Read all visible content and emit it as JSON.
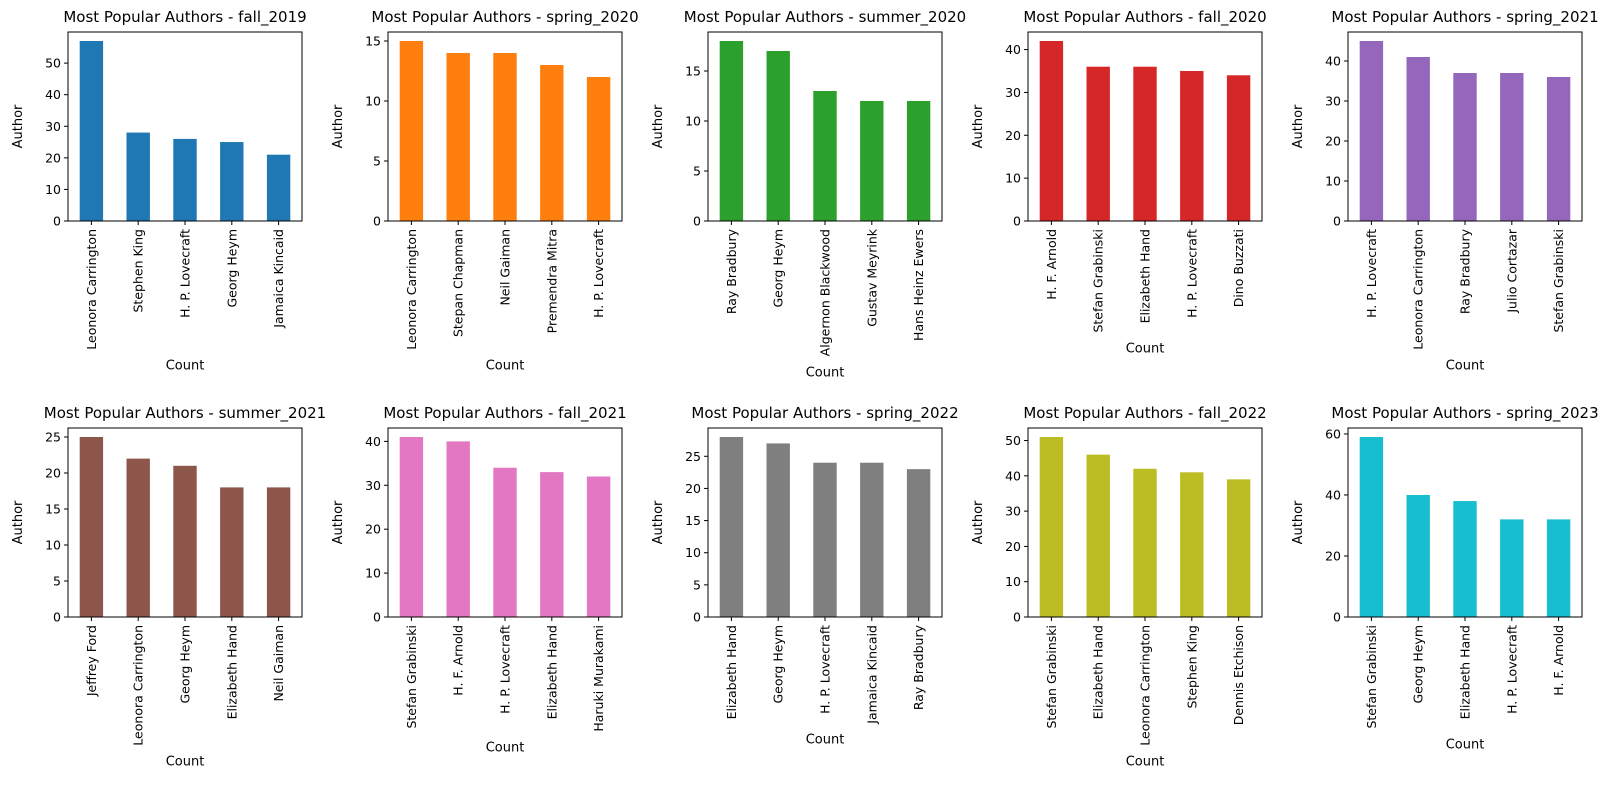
{
  "chart_data": [
    {
      "type": "bar",
      "title": "Most Popular Authors - fall_2019",
      "xlabel": "Count",
      "ylabel": "Author",
      "color": "#1f77b4",
      "categories": [
        "Leonora Carrington",
        "Stephen King",
        "H. P. Lovecraft",
        "Georg Heym",
        "Jamaica Kincaid"
      ],
      "values": [
        57,
        28,
        26,
        25,
        21
      ],
      "ylim": [
        0,
        59.85
      ],
      "yticks": [
        0,
        10,
        20,
        30,
        40,
        50
      ],
      "grid": false
    },
    {
      "type": "bar",
      "title": "Most Popular Authors - spring_2020",
      "xlabel": "Count",
      "ylabel": "Author",
      "color": "#ff7f0e",
      "categories": [
        "Leonora Carrington",
        "Stepan Chapman",
        "Neil Gaiman",
        "Premendra Mitra",
        "H. P. Lovecraft"
      ],
      "values": [
        15,
        14,
        14,
        13,
        12
      ],
      "ylim": [
        0,
        15.75
      ],
      "yticks": [
        0,
        5,
        10,
        15
      ],
      "grid": false
    },
    {
      "type": "bar",
      "title": "Most Popular Authors - summer_2020",
      "xlabel": "Count",
      "ylabel": "Author",
      "color": "#2ca02c",
      "categories": [
        "Ray Bradbury",
        "Georg Heym",
        "Algernon Blackwood",
        "Gustav Meyrink",
        "Hans Heinz Ewers"
      ],
      "values": [
        18,
        17,
        13,
        12,
        12
      ],
      "ylim": [
        0,
        18.9
      ],
      "yticks": [
        0,
        5,
        10,
        15
      ],
      "grid": false
    },
    {
      "type": "bar",
      "title": "Most Popular Authors - fall_2020",
      "xlabel": "Count",
      "ylabel": "Author",
      "color": "#d62728",
      "categories": [
        "H. F. Arnold",
        "Stefan Grabinski",
        "Elizabeth Hand",
        "H. P. Lovecraft",
        "Dino Buzzati"
      ],
      "values": [
        42,
        36,
        36,
        35,
        34
      ],
      "ylim": [
        0,
        44.1
      ],
      "yticks": [
        0,
        10,
        20,
        30,
        40
      ],
      "grid": false
    },
    {
      "type": "bar",
      "title": "Most Popular Authors - spring_2021",
      "xlabel": "Count",
      "ylabel": "Author",
      "color": "#9467bd",
      "categories": [
        "H. P. Lovecraft",
        "Leonora Carrington",
        "Ray Bradbury",
        "Julio Cortazar",
        "Stefan Grabinski"
      ],
      "values": [
        45,
        41,
        37,
        37,
        36
      ],
      "ylim": [
        0,
        47.25
      ],
      "yticks": [
        0,
        10,
        20,
        30,
        40
      ],
      "grid": false
    },
    {
      "type": "bar",
      "title": "Most Popular Authors - summer_2021",
      "xlabel": "Count",
      "ylabel": "Author",
      "color": "#8c564b",
      "categories": [
        "Jeffrey Ford",
        "Leonora Carrington",
        "Georg Heym",
        "Elizabeth Hand",
        "Neil Gaiman"
      ],
      "values": [
        25,
        22,
        21,
        18,
        18
      ],
      "ylim": [
        0,
        26.25
      ],
      "yticks": [
        0,
        5,
        10,
        15,
        20,
        25
      ],
      "grid": false
    },
    {
      "type": "bar",
      "title": "Most Popular Authors - fall_2021",
      "xlabel": "Count",
      "ylabel": "Author",
      "color": "#e377c2",
      "categories": [
        "Stefan Grabinski",
        "H. F. Arnold",
        "H. P. Lovecraft",
        "Elizabeth Hand",
        "Haruki Murakami"
      ],
      "values": [
        41,
        40,
        34,
        33,
        32
      ],
      "ylim": [
        0,
        43.05
      ],
      "yticks": [
        0,
        10,
        20,
        30,
        40
      ],
      "grid": false
    },
    {
      "type": "bar",
      "title": "Most Popular Authors - spring_2022",
      "xlabel": "Count",
      "ylabel": "Author",
      "color": "#7f7f7f",
      "categories": [
        "Elizabeth Hand",
        "Georg Heym",
        "H. P. Lovecraft",
        "Jamaica Kincaid",
        "Ray Bradbury"
      ],
      "values": [
        28,
        27,
        24,
        24,
        23
      ],
      "ylim": [
        0,
        29.4
      ],
      "yticks": [
        0,
        5,
        10,
        15,
        20,
        25
      ],
      "grid": false
    },
    {
      "type": "bar",
      "title": "Most Popular Authors - fall_2022",
      "xlabel": "Count",
      "ylabel": "Author",
      "color": "#bcbd22",
      "categories": [
        "Stefan Grabinski",
        "Elizabeth Hand",
        "Leonora Carrington",
        "Stephen King",
        "Dennis Etchison"
      ],
      "values": [
        51,
        46,
        42,
        41,
        39
      ],
      "ylim": [
        0,
        53.55
      ],
      "yticks": [
        0,
        10,
        20,
        30,
        40,
        50
      ],
      "grid": false
    },
    {
      "type": "bar",
      "title": "Most Popular Authors - spring_2023",
      "xlabel": "Count",
      "ylabel": "Author",
      "color": "#17becf",
      "categories": [
        "Stefan Grabinski",
        "Georg Heym",
        "Elizabeth Hand",
        "H. P. Lovecraft",
        "H. F. Arnold"
      ],
      "values": [
        59,
        40,
        38,
        32,
        32
      ],
      "ylim": [
        0,
        61.95
      ],
      "yticks": [
        0,
        20,
        40,
        60
      ],
      "grid": false
    }
  ]
}
